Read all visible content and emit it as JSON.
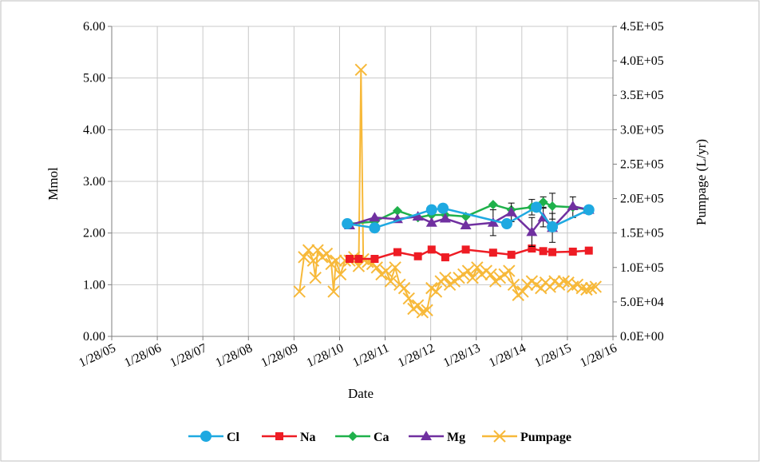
{
  "chart_data": {
    "type": "line",
    "title": "",
    "xlabel": "Date",
    "ylabel": "Mmol",
    "y2label": "Pumpage (L/yr)",
    "x_ticks": [
      "1/28/05",
      "1/28/06",
      "1/28/07",
      "1/28/08",
      "1/28/09",
      "1/28/10",
      "1/28/11",
      "1/28/12",
      "1/28/13",
      "1/28/14",
      "1/28/15",
      "1/28/16"
    ],
    "y_ticks": [
      "0.00",
      "1.00",
      "2.00",
      "3.00",
      "4.00",
      "5.00",
      "6.00"
    ],
    "y2_ticks": [
      "0.0E+00",
      "5.0E+04",
      "1.0E+05",
      "1.5E+05",
      "2.0E+05",
      "2.5E+05",
      "3.0E+05",
      "3.5E+05",
      "4.0E+05",
      "4.5E+05"
    ],
    "xlim": [
      2005.08,
      2016.08
    ],
    "ylim": [
      0,
      6
    ],
    "y2lim": [
      0,
      450000
    ],
    "grid": true,
    "legend_position": "bottom",
    "colors": {
      "Cl": "#1ea9e1",
      "Na": "#ee1c24",
      "Ca": "#1fb14b",
      "Mg": "#7030a0",
      "Pumpage": "#f7b93a"
    },
    "series": [
      {
        "name": "Cl",
        "axis": "left",
        "marker": "circle",
        "x": [
          2010.25,
          2010.85,
          2012.1,
          2012.35,
          2013.75,
          2014.4,
          2014.75,
          2015.55
        ],
        "y": [
          2.18,
          2.1,
          2.45,
          2.48,
          2.18,
          2.5,
          2.12,
          2.45
        ]
      },
      {
        "name": "Na",
        "axis": "left",
        "marker": "square",
        "x": [
          2010.3,
          2010.5,
          2010.85,
          2011.35,
          2011.8,
          2012.1,
          2012.4,
          2012.85,
          2013.45,
          2013.85,
          2014.3,
          2014.55,
          2014.75,
          2015.2,
          2015.55
        ],
        "y": [
          1.5,
          1.5,
          1.5,
          1.63,
          1.55,
          1.68,
          1.53,
          1.68,
          1.62,
          1.58,
          1.7,
          1.65,
          1.63,
          1.64,
          1.66
        ],
        "err": [
          0,
          0,
          0,
          0,
          0,
          0,
          0,
          0,
          0,
          0,
          0,
          0,
          0,
          0,
          0
        ]
      },
      {
        "name": "Ca",
        "axis": "left",
        "marker": "diamond",
        "x": [
          2010.3,
          2010.85,
          2011.35,
          2011.8,
          2012.1,
          2012.4,
          2012.85,
          2013.45,
          2013.85,
          2014.3,
          2014.55,
          2014.75,
          2015.2,
          2015.55
        ],
        "y": [
          2.18,
          2.22,
          2.43,
          2.3,
          2.35,
          2.35,
          2.32,
          2.55,
          2.45,
          2.5,
          2.6,
          2.52,
          2.5,
          2.45
        ],
        "err": [
          0,
          0,
          0,
          0,
          0,
          0,
          0,
          0,
          0,
          0.15,
          0.1,
          0.25,
          0.2,
          0
        ]
      },
      {
        "name": "Mg",
        "axis": "left",
        "marker": "triangle",
        "x": [
          2010.3,
          2010.85,
          2011.35,
          2011.8,
          2012.1,
          2012.4,
          2012.85,
          2013.45,
          2013.85,
          2014.3,
          2014.55,
          2014.75,
          2015.2,
          2015.55
        ],
        "y": [
          2.15,
          2.3,
          2.27,
          2.32,
          2.2,
          2.28,
          2.15,
          2.2,
          2.4,
          2.02,
          2.3,
          2.1,
          2.52,
          2.45
        ],
        "err": [
          0,
          0,
          0,
          0,
          0,
          0,
          0,
          0.25,
          0.18,
          0.28,
          0.18,
          0.28,
          0,
          0
        ]
      },
      {
        "name": "Pumpage",
        "axis": "right",
        "marker": "x",
        "x": [
          2009.2,
          2009.3,
          2009.4,
          2009.5,
          2009.55,
          2009.6,
          2009.7,
          2009.8,
          2009.9,
          2009.95,
          2010.0,
          2010.1,
          2010.2,
          2010.3,
          2010.4,
          2010.5,
          2010.55,
          2010.6,
          2010.7,
          2010.8,
          2010.9,
          2011.0,
          2011.1,
          2011.2,
          2011.3,
          2011.4,
          2011.5,
          2011.6,
          2011.7,
          2011.8,
          2011.9,
          2012.0,
          2012.1,
          2012.2,
          2012.3,
          2012.4,
          2012.5,
          2012.6,
          2012.7,
          2012.8,
          2012.9,
          2013.0,
          2013.1,
          2013.2,
          2013.3,
          2013.4,
          2013.5,
          2013.6,
          2013.7,
          2013.8,
          2013.9,
          2014.0,
          2014.1,
          2014.2,
          2014.3,
          2014.4,
          2014.5,
          2014.6,
          2014.7,
          2014.8,
          2014.9,
          2015.0,
          2015.1,
          2015.2,
          2015.3,
          2015.4,
          2015.5,
          2015.6,
          2015.7
        ],
        "y": [
          65000,
          115000,
          125000,
          110000,
          85000,
          125000,
          115000,
          120000,
          105000,
          65000,
          110000,
          90000,
          110000,
          110000,
          115000,
          102000,
          387000,
          112000,
          108000,
          105000,
          100000,
          90000,
          95000,
          80000,
          100000,
          75000,
          70000,
          55000,
          40000,
          45000,
          35000,
          38000,
          70000,
          65000,
          80000,
          85000,
          75000,
          80000,
          85000,
          90000,
          95000,
          85000,
          100000,
          90000,
          95000,
          90000,
          80000,
          85000,
          90000,
          95000,
          75000,
          60000,
          65000,
          75000,
          80000,
          75000,
          70000,
          78000,
          72000,
          80000,
          75000,
          80000,
          78000,
          72000,
          75000,
          70000,
          68000,
          70000,
          72000
        ]
      }
    ]
  }
}
